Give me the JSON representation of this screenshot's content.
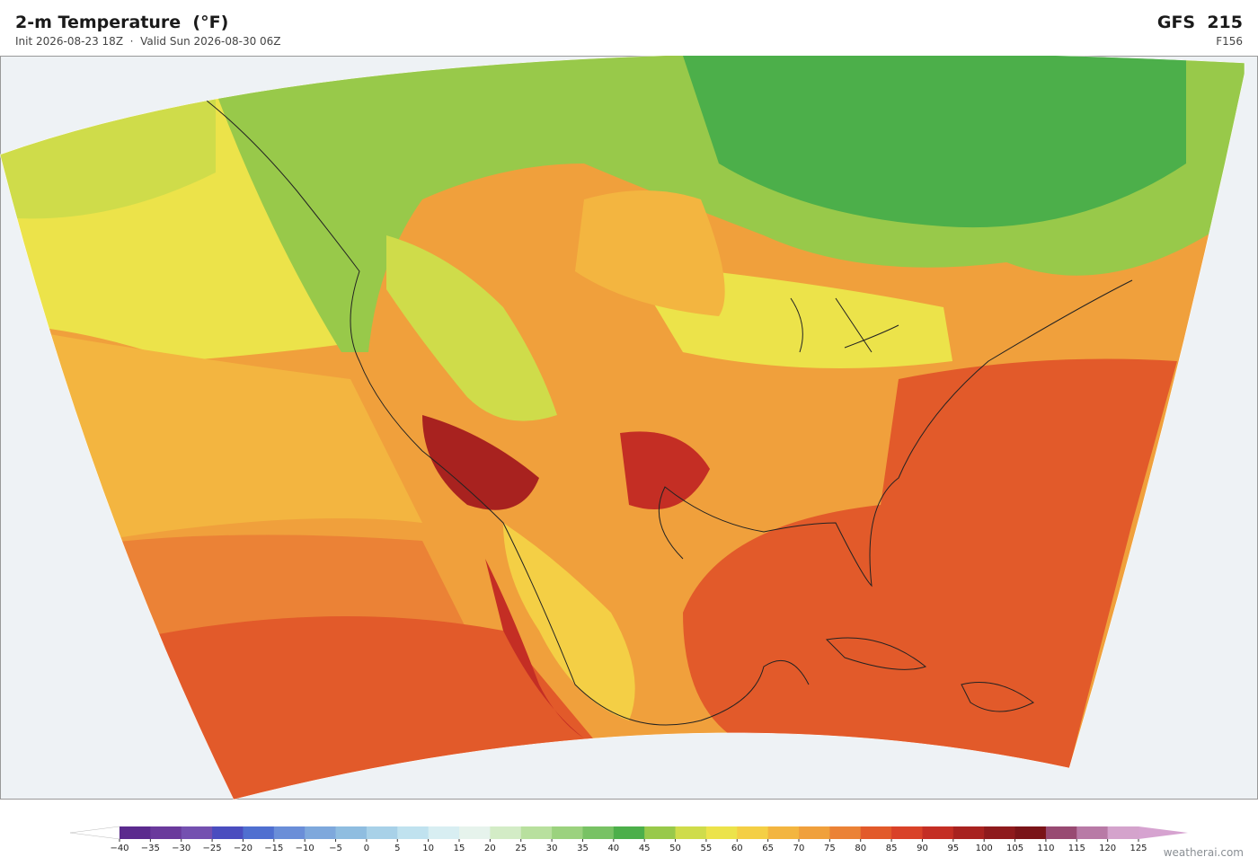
{
  "header": {
    "title": "2-m Temperature  (°F)",
    "subtitle": "Init 2026-08-23 18Z  ·  Valid Sun 2026-08-30 06Z",
    "model": "GFS  215",
    "forecast_hour": "F156"
  },
  "colorbar": {
    "labels": [
      "−40",
      "−35",
      "−30",
      "−25",
      "−20",
      "−15",
      "−10",
      "−5",
      "0",
      "5",
      "10",
      "15",
      "20",
      "25",
      "30",
      "35",
      "40",
      "45",
      "50",
      "55",
      "60",
      "65",
      "70",
      "75",
      "80",
      "85",
      "90",
      "95",
      "100",
      "105",
      "110",
      "115",
      "120",
      "125"
    ],
    "colors": [
      "#5b2a8e",
      "#6a3a9c",
      "#7450b0",
      "#4a4dbf",
      "#4f6fd0",
      "#6a8ed8",
      "#7ea8dc",
      "#8fbde0",
      "#a8d1e8",
      "#c0e2ef",
      "#d8eef2",
      "#e6f3ec",
      "#d3ecc6",
      "#b8e09e",
      "#9bd27e",
      "#78c264",
      "#4caf4a",
      "#98c94a",
      "#cfdc4a",
      "#ece34a",
      "#f4cf45",
      "#f3b540",
      "#f0a03c",
      "#eb8236",
      "#e25a2a",
      "#d94228",
      "#c42e24",
      "#a8221f",
      "#8e1a1c",
      "#7a1418",
      "#984a72",
      "#b87aa6",
      "#d4a3cc"
    ],
    "under_color": "#ffffff",
    "over_color": "#d6a3d0"
  },
  "footer": {
    "credit": "weatherai.com"
  }
}
